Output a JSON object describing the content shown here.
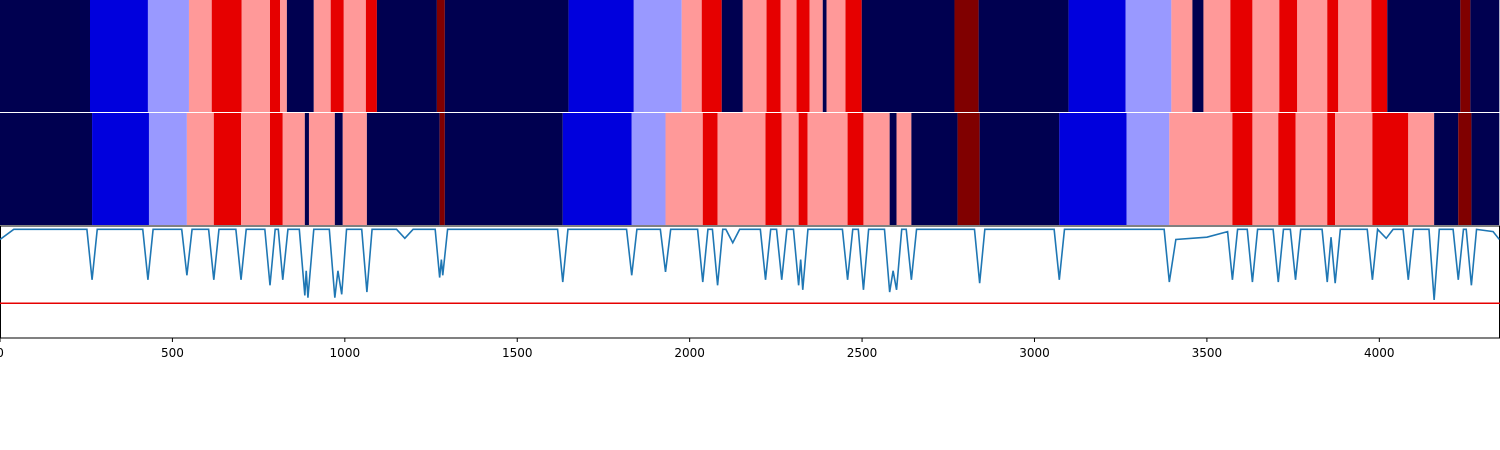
{
  "chart_data": {
    "type": "segmentation",
    "xlim": [
      0,
      4350
    ],
    "xticks": [
      0,
      500,
      1000,
      1500,
      2000,
      2500,
      3000,
      3500,
      4000
    ],
    "ylim": [
      0,
      1
    ],
    "bands": [
      {
        "edges": [
          0,
          261,
          429,
          548,
          614,
          701,
          783,
          812,
          832,
          910,
          959,
          997,
          1061,
          1093,
          1267,
          1290,
          1649,
          1838,
          1977,
          2035,
          2093,
          2154,
          2223,
          2264,
          2310,
          2348,
          2386,
          2397,
          2452,
          2499,
          2768,
          2838,
          3099,
          3264,
          3397,
          3458,
          3490,
          3568,
          3632,
          3710,
          3762,
          3849,
          3881,
          3977,
          4023,
          4235,
          4264,
          4348
        ],
        "colors": [
          "#000050",
          "#0000dd",
          "#9999ff",
          "#ff9999",
          "#e60000",
          "#ff9999",
          "#e60000",
          "#ff9999",
          "#000050",
          "#ff9999",
          "#e60000",
          "#ff9999",
          "#e60000",
          "#000050",
          "#800000",
          "#000050",
          "#0000dd",
          "#9999ff",
          "#ff9999",
          "#e60000",
          "#000050",
          "#ff9999",
          "#e60000",
          "#ff9999",
          "#e60000",
          "#ff9999",
          "#000050",
          "#ff9999",
          "#e60000",
          "#000050",
          "#800000",
          "#000050",
          "#0000dd",
          "#9999ff",
          "#ff9999",
          "#000050",
          "#ff9999",
          "#e60000",
          "#ff9999",
          "#e60000",
          "#ff9999",
          "#e60000",
          "#ff9999",
          "#e60000",
          "#000050",
          "#800000",
          "#000050"
        ]
      },
      {
        "edges": [
          0,
          267,
          432,
          542,
          620,
          699,
          783,
          820,
          884,
          896,
          971,
          994,
          1064,
          1275,
          1290,
          1632,
          1832,
          1930,
          2038,
          2081,
          2220,
          2267,
          2316,
          2342,
          2458,
          2504,
          2580,
          2600,
          2643,
          2777,
          2841,
          3072,
          3267,
          3391,
          3574,
          3632,
          3707,
          3757,
          3849,
          3872,
          3980,
          4084,
          4159,
          4229,
          4267,
          4348
        ],
        "colors": [
          "#000050",
          "#0000dd",
          "#9999ff",
          "#ff9999",
          "#e60000",
          "#ff9999",
          "#e60000",
          "#ff9999",
          "#000050",
          "#ff9999",
          "#000050",
          "#ff9999",
          "#000050",
          "#800000",
          "#000050",
          "#0000dd",
          "#9999ff",
          "#ff9999",
          "#e60000",
          "#ff9999",
          "#e60000",
          "#ff9999",
          "#e60000",
          "#ff9999",
          "#e60000",
          "#ff9999",
          "#000050",
          "#ff9999",
          "#000050",
          "#800000",
          "#000050",
          "#0000dd",
          "#9999ff",
          "#ff9999",
          "#e60000",
          "#ff9999",
          "#e60000",
          "#ff9999",
          "#e60000",
          "#ff9999",
          "#e60000",
          "#ff9999",
          "#000050",
          "#800000",
          "#000050"
        ]
      }
    ],
    "series": [
      {
        "color": "#1f77b4",
        "x": [
          0,
          40,
          252,
          267,
          282,
          414,
          429,
          444,
          527,
          542,
          557,
          605,
          620,
          635,
          684,
          699,
          714,
          768,
          783,
          798,
          807,
          820,
          835,
          868,
          884,
          888,
          893,
          910,
          955,
          971,
          980,
          991,
          1005,
          1049,
          1064,
          1079,
          1150,
          1174,
          1198,
          1262,
          1275,
          1280,
          1284,
          1298,
          1617,
          1632,
          1647,
          1817,
          1832,
          1847,
          1915,
          1930,
          1945,
          2023,
          2038,
          2053,
          2066,
          2081,
          2096,
          2105,
          2125,
          2145,
          2205,
          2220,
          2235,
          2252,
          2267,
          2282,
          2301,
          2316,
          2322,
          2328,
          2343,
          2443,
          2458,
          2473,
          2489,
          2504,
          2519,
          2565,
          2580,
          2590,
          2600,
          2615,
          2628,
          2643,
          2658,
          2826,
          2841,
          2856,
          3057,
          3072,
          3087,
          3376,
          3391,
          3410,
          3500,
          3560,
          3574,
          3589,
          3617,
          3632,
          3647,
          3692,
          3707,
          3722,
          3742,
          3757,
          3772,
          3834,
          3849,
          3860,
          3872,
          3887,
          3965,
          3980,
          3995,
          4020,
          4040,
          4069,
          4084,
          4099,
          4144,
          4159,
          4174,
          4214,
          4229,
          4244,
          4252,
          4267,
          4282,
          4330,
          4348
        ],
        "values": [
          0.88,
          0.97,
          0.97,
          0.52,
          0.97,
          0.97,
          0.52,
          0.97,
          0.97,
          0.56,
          0.97,
          0.97,
          0.52,
          0.97,
          0.97,
          0.52,
          0.97,
          0.97,
          0.47,
          0.97,
          0.97,
          0.52,
          0.97,
          0.97,
          0.38,
          0.6,
          0.36,
          0.97,
          0.97,
          0.36,
          0.6,
          0.39,
          0.97,
          0.97,
          0.41,
          0.97,
          0.97,
          0.89,
          0.97,
          0.97,
          0.54,
          0.7,
          0.56,
          0.97,
          0.97,
          0.5,
          0.97,
          0.97,
          0.56,
          0.97,
          0.97,
          0.59,
          0.97,
          0.97,
          0.5,
          0.97,
          0.97,
          0.47,
          0.97,
          0.97,
          0.85,
          0.97,
          0.97,
          0.52,
          0.97,
          0.97,
          0.52,
          0.97,
          0.97,
          0.47,
          0.7,
          0.43,
          0.97,
          0.97,
          0.52,
          0.97,
          0.97,
          0.43,
          0.97,
          0.97,
          0.41,
          0.6,
          0.43,
          0.97,
          0.97,
          0.52,
          0.97,
          0.97,
          0.49,
          0.97,
          0.97,
          0.52,
          0.97,
          0.97,
          0.5,
          0.88,
          0.9,
          0.95,
          0.52,
          0.97,
          0.97,
          0.5,
          0.97,
          0.97,
          0.5,
          0.97,
          0.97,
          0.52,
          0.97,
          0.97,
          0.5,
          0.9,
          0.49,
          0.97,
          0.97,
          0.52,
          0.97,
          0.89,
          0.97,
          0.97,
          0.52,
          0.97,
          0.97,
          0.34,
          0.97,
          0.97,
          0.52,
          0.97,
          0.97,
          0.47,
          0.97,
          0.95,
          0.88
        ]
      }
    ],
    "threshold": {
      "value": 0.31,
      "color": "#e60000"
    }
  }
}
